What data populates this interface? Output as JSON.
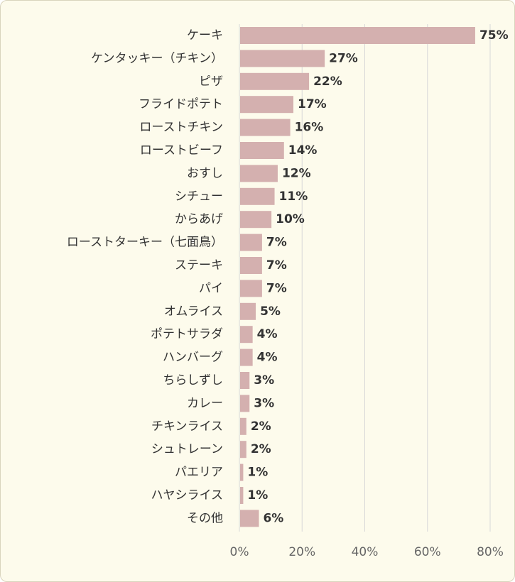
{
  "chart_data": {
    "type": "bar",
    "orientation": "horizontal",
    "categories": [
      "ケーキ",
      "ケンタッキー（チキン）",
      "ピザ",
      "フライドポテト",
      "ローストチキン",
      "ローストビーフ",
      "おすし",
      "シチュー",
      "からあげ",
      "ローストターキー（七面鳥）",
      "ステーキ",
      "パイ",
      "オムライス",
      "ポテトサラダ",
      "ハンバーグ",
      "ちらしずし",
      "カレー",
      "チキンライス",
      "シュトレーン",
      "パエリア",
      "ハヤシライス",
      "その他"
    ],
    "values": [
      75,
      27,
      22,
      17,
      16,
      14,
      12,
      11,
      10,
      7,
      7,
      7,
      5,
      4,
      4,
      3,
      3,
      2,
      2,
      1,
      1,
      6
    ],
    "value_labels": [
      "75%",
      "27%",
      "22%",
      "17%",
      "16%",
      "14%",
      "12%",
      "11%",
      "10%",
      "7%",
      "7%",
      "7%",
      "5%",
      "4%",
      "4%",
      "3%",
      "3%",
      "2%",
      "2%",
      "1%",
      "1%",
      "6%"
    ],
    "xlim": [
      0,
      80
    ],
    "x_ticks": [
      0,
      20,
      40,
      60,
      80
    ],
    "x_tick_labels": [
      "0%",
      "20%",
      "40%",
      "60%",
      "80%"
    ],
    "grid": true,
    "bar_color": "#d4b0af",
    "gridline_color": "#d8d8d8",
    "background_color": "#fdfbec"
  }
}
